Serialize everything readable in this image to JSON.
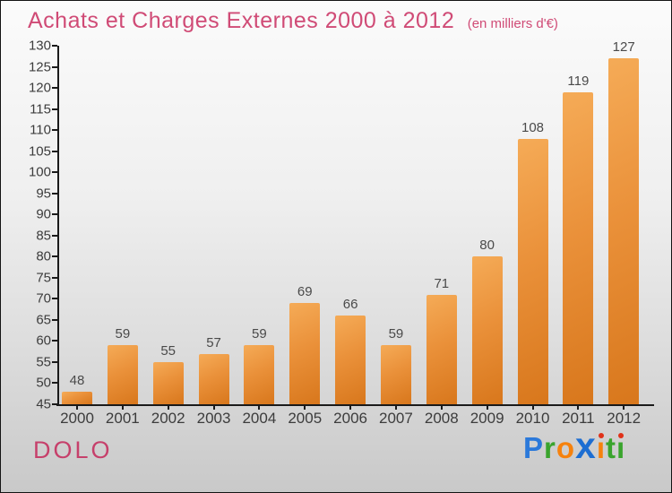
{
  "header": {
    "title": "Achats et Charges Externes 2000 à 2012",
    "subtitle": "(en milliers d'€)",
    "title_color": "#d04b76"
  },
  "chart_data": {
    "type": "bar",
    "title": "Achats et Charges Externes 2000 à 2012",
    "subtitle": "(en milliers d'€)",
    "categories": [
      "2000",
      "2001",
      "2002",
      "2003",
      "2004",
      "2005",
      "2006",
      "2007",
      "2008",
      "2009",
      "2010",
      "2011",
      "2012"
    ],
    "values": [
      48,
      59,
      55,
      57,
      59,
      69,
      66,
      59,
      71,
      80,
      108,
      119,
      127
    ],
    "ylim": [
      45,
      130
    ],
    "ytick_step": 5,
    "grid": false,
    "legend": null,
    "bar_gradient_light": "#f5ab57",
    "bar_gradient_mid": "#ea913a",
    "bar_gradient_dark": "#d8771c",
    "axis_color": "#1a1a1a",
    "value_label_color": "#4a4a4a",
    "tick_label_color": "#3c3c3c"
  },
  "footer": {
    "company": "DOLO",
    "company_color": "#c6406b",
    "brand": {
      "name": "Proxiti",
      "letters": [
        {
          "ch": "P",
          "color": "#2b79da"
        },
        {
          "ch": "r",
          "color": "#3aa42d"
        },
        {
          "ch": "o",
          "color": "#f6820d"
        },
        {
          "ch": "x",
          "color": "#1d6ed2",
          "big": true
        },
        {
          "ch": "i",
          "color": "#f6820d",
          "dot": "#e03118"
        },
        {
          "ch": "t",
          "color": "#3aa42d"
        },
        {
          "ch": "i",
          "color": "#3aa42d",
          "dot": "#e03118"
        }
      ]
    }
  }
}
